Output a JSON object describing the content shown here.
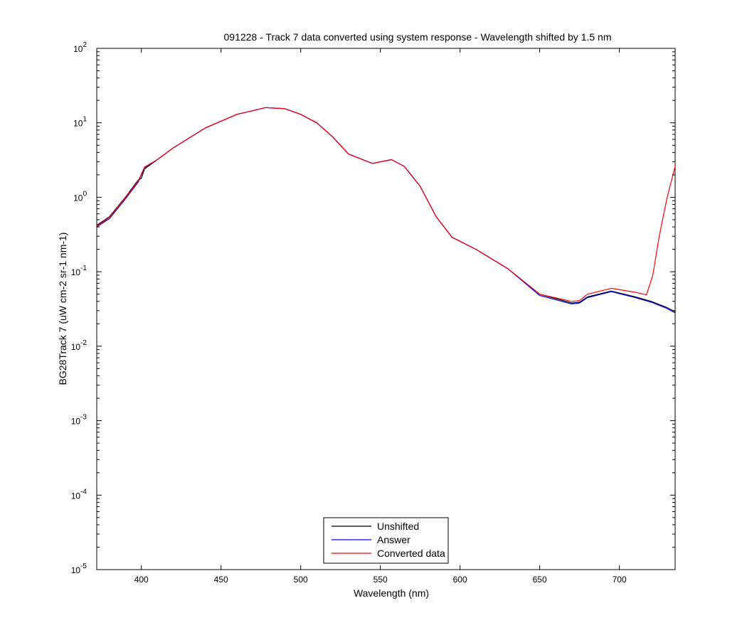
{
  "chart_data": {
    "type": "line",
    "title": "091228 - Track 7 data converted using system response - Wavelength shifted by 1.5 nm",
    "xlabel": "Wavelength (nm)",
    "ylabel": "BG28Track 7 (uW cm-2 sr-1 nm-1)",
    "xlim": [
      372,
      735
    ],
    "ylim": [
      1e-05,
      100
    ],
    "yscale": "log",
    "grid": false,
    "legend_position": "bottom-center",
    "x_ticks": [
      400,
      450,
      500,
      550,
      600,
      650,
      700
    ],
    "y_ticks": [
      {
        "base": "10",
        "exp": "2"
      },
      {
        "base": "10",
        "exp": "1"
      },
      {
        "base": "10",
        "exp": "0"
      },
      {
        "base": "10",
        "exp": "-1"
      },
      {
        "base": "10",
        "exp": "-2"
      },
      {
        "base": "10",
        "exp": "-3"
      },
      {
        "base": "10",
        "exp": "-4"
      },
      {
        "base": "10",
        "exp": "-5"
      }
    ],
    "series": [
      {
        "name": "Unshifted",
        "color": "#000000",
        "x": [
          372,
          380,
          390,
          398,
          400,
          402,
          410,
          420,
          440,
          460,
          478,
          490,
          500,
          510,
          520,
          530,
          545,
          557,
          565,
          575,
          585,
          595,
          610,
          630,
          650,
          670,
          675,
          680,
          695,
          710,
          720,
          730,
          735
        ],
        "y": [
          0.42,
          0.55,
          1.0,
          1.7,
          1.8,
          2.4,
          3.2,
          4.6,
          8.5,
          13.0,
          16.0,
          15.5,
          13.0,
          10.0,
          6.5,
          3.8,
          2.85,
          3.2,
          2.6,
          1.4,
          0.55,
          0.29,
          0.2,
          0.11,
          0.05,
          0.038,
          0.039,
          0.046,
          0.055,
          0.046,
          0.04,
          0.033,
          0.029
        ]
      },
      {
        "name": "Answer",
        "color": "#0000ff",
        "x": [
          372,
          380,
          390,
          398,
          402,
          410,
          420,
          440,
          460,
          478,
          490,
          500,
          510,
          520,
          530,
          545,
          557,
          565,
          575,
          585,
          595,
          610,
          630,
          650,
          670,
          675,
          680,
          695,
          710,
          720,
          730,
          735
        ],
        "y": [
          0.4,
          0.52,
          0.95,
          1.6,
          2.5,
          3.2,
          4.6,
          8.5,
          13.0,
          16.0,
          15.5,
          13.0,
          10.0,
          6.5,
          3.8,
          2.85,
          3.2,
          2.6,
          1.4,
          0.55,
          0.29,
          0.2,
          0.11,
          0.048,
          0.037,
          0.038,
          0.045,
          0.054,
          0.045,
          0.039,
          0.032,
          0.028
        ]
      },
      {
        "name": "Converted data",
        "color": "#ff0000",
        "x": [
          372,
          380,
          390,
          398,
          402,
          410,
          420,
          440,
          460,
          478,
          490,
          500,
          510,
          520,
          530,
          545,
          557,
          565,
          575,
          585,
          595,
          610,
          630,
          650,
          670,
          675,
          680,
          695,
          710,
          717,
          721,
          725,
          730,
          735
        ],
        "y": [
          0.41,
          0.54,
          0.98,
          1.65,
          2.55,
          3.2,
          4.6,
          8.5,
          13.0,
          16.0,
          15.5,
          13.0,
          10.0,
          6.5,
          3.8,
          2.85,
          3.2,
          2.6,
          1.4,
          0.55,
          0.29,
          0.2,
          0.11,
          0.05,
          0.04,
          0.041,
          0.05,
          0.06,
          0.053,
          0.049,
          0.09,
          0.3,
          1.0,
          2.6
        ]
      }
    ]
  }
}
